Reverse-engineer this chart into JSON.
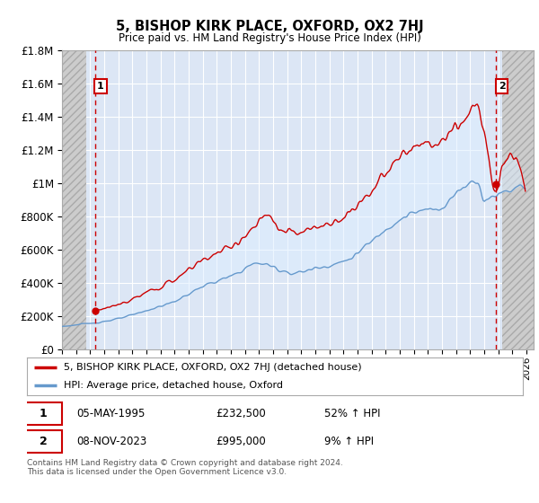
{
  "title": "5, BISHOP KIRK PLACE, OXFORD, OX2 7HJ",
  "subtitle": "Price paid vs. HM Land Registry's House Price Index (HPI)",
  "transaction1_date": "05-MAY-1995",
  "transaction1_price": 232500,
  "transaction1_label": "£232,500",
  "transaction1_hpi": "52% ↑ HPI",
  "transaction2_date": "08-NOV-2023",
  "transaction2_price": 995000,
  "transaction2_label": "£995,000",
  "transaction2_hpi": "9% ↑ HPI",
  "legend_line1": "5, BISHOP KIRK PLACE, OXFORD, OX2 7HJ (detached house)",
  "legend_line2": "HPI: Average price, detached house, Oxford",
  "footnote": "Contains HM Land Registry data © Crown copyright and database right 2024.\nThis data is licensed under the Open Government Licence v3.0.",
  "ylim": [
    0,
    1800000
  ],
  "xlim_start": 1993.0,
  "xlim_end": 2026.5,
  "hatch_left_end": 1994.75,
  "hatch_right_start": 2024.25,
  "red_line_color": "#cc0000",
  "blue_line_color": "#6699cc",
  "fill_color": "#ddeeff",
  "bg_color": "#dce6f5",
  "grid_color": "#ffffff",
  "transaction_x1": 1995.35,
  "transaction_x2": 2023.85,
  "yticks": [
    0,
    200000,
    400000,
    600000,
    800000,
    1000000,
    1200000,
    1400000,
    1600000,
    1800000
  ]
}
